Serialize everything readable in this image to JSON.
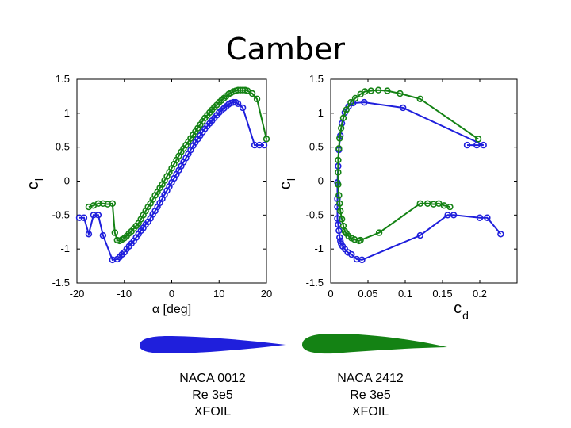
{
  "title": "Camber",
  "colors": {
    "naca0012": "#1f1fdc",
    "naca2412": "#148214"
  },
  "chart_data": [
    {
      "type": "line",
      "name": "cl-vs-alpha",
      "ylabel_main": "c",
      "ylabel_sub": "l",
      "xlabel": "α [deg]",
      "xlim": [
        -20,
        20
      ],
      "ylim": [
        -1.5,
        1.5
      ],
      "xticks": [
        -20,
        -10,
        0,
        10,
        20
      ],
      "xtick_labels": [
        "-20",
        "-10",
        "0",
        "10",
        "20"
      ],
      "yticks": [
        -1.5,
        -1,
        -0.5,
        0,
        0.5,
        1,
        1.5
      ],
      "ytick_labels": [
        "-1.5",
        "-1",
        "-0.5",
        "0",
        "0.5",
        "1",
        "1.5"
      ],
      "series": [
        {
          "name": "NACA 0012",
          "color": "#1f1fdc",
          "x": [
            -19.5,
            -18.5,
            -17.5,
            -16.5,
            -15.5,
            -14.5,
            -12.5,
            -11.5,
            -11,
            -10.5,
            -10,
            -9.5,
            -9,
            -8.5,
            -8,
            -7.5,
            -7,
            -6.5,
            -6,
            -5.5,
            -5,
            -4.5,
            -4,
            -3.5,
            -3,
            -2.5,
            -2,
            -1.5,
            -1,
            -0.5,
            0,
            0.5,
            1,
            1.5,
            2,
            2.5,
            3,
            3.5,
            4,
            4.5,
            5,
            5.5,
            6,
            6.5,
            7,
            7.5,
            8,
            8.5,
            9,
            9.5,
            10,
            10.5,
            11,
            11.5,
            12,
            12.5,
            13,
            13.5,
            14,
            15,
            17.5,
            18.5,
            19.5
          ],
          "y": [
            -0.54,
            -0.54,
            -0.78,
            -0.5,
            -0.5,
            -0.8,
            -1.16,
            -1.15,
            -1.12,
            -1.08,
            -1.05,
            -1.0,
            -0.96,
            -0.92,
            -0.88,
            -0.83,
            -0.78,
            -0.73,
            -0.69,
            -0.64,
            -0.6,
            -0.55,
            -0.49,
            -0.44,
            -0.38,
            -0.32,
            -0.26,
            -0.2,
            -0.14,
            -0.08,
            -0.02,
            0.04,
            0.1,
            0.16,
            0.22,
            0.28,
            0.34,
            0.4,
            0.46,
            0.52,
            0.57,
            0.62,
            0.67,
            0.72,
            0.77,
            0.81,
            0.85,
            0.89,
            0.93,
            0.97,
            1.01,
            1.04,
            1.07,
            1.1,
            1.13,
            1.15,
            1.16,
            1.16,
            1.14,
            1.08,
            0.53,
            0.53,
            0.53
          ]
        },
        {
          "name": "NACA 2412",
          "color": "#148214",
          "x": [
            -17.5,
            -16.5,
            -15.5,
            -14.5,
            -13.5,
            -12.5,
            -12,
            -11.5,
            -11,
            -10.5,
            -10,
            -9.5,
            -9,
            -8.5,
            -8,
            -7.5,
            -7,
            -6.5,
            -6,
            -5.5,
            -5,
            -4.5,
            -4,
            -3.5,
            -3,
            -2.5,
            -2,
            -1.5,
            -1,
            -0.5,
            0,
            0.5,
            1,
            1.5,
            2,
            2.5,
            3,
            3.5,
            4,
            4.5,
            5,
            5.5,
            6,
            6.5,
            7,
            7.5,
            8,
            8.5,
            9,
            9.5,
            10,
            10.5,
            11,
            11.5,
            12,
            12.5,
            13,
            13.5,
            14,
            14.5,
            15,
            15.5,
            16,
            17,
            18,
            20
          ],
          "y": [
            -0.38,
            -0.36,
            -0.33,
            -0.33,
            -0.34,
            -0.33,
            -0.76,
            -0.87,
            -0.88,
            -0.86,
            -0.84,
            -0.81,
            -0.77,
            -0.74,
            -0.7,
            -0.66,
            -0.62,
            -0.56,
            -0.5,
            -0.44,
            -0.38,
            -0.33,
            -0.27,
            -0.21,
            -0.16,
            -0.1,
            -0.05,
            0.01,
            0.07,
            0.13,
            0.19,
            0.25,
            0.31,
            0.37,
            0.43,
            0.48,
            0.53,
            0.58,
            0.63,
            0.68,
            0.73,
            0.78,
            0.83,
            0.88,
            0.93,
            0.97,
            1.01,
            1.05,
            1.09,
            1.12,
            1.16,
            1.19,
            1.22,
            1.25,
            1.28,
            1.3,
            1.32,
            1.33,
            1.34,
            1.34,
            1.34,
            1.34,
            1.33,
            1.29,
            1.21,
            0.62
          ]
        }
      ]
    },
    {
      "type": "line",
      "name": "cl-vs-cd",
      "ylabel_main": "c",
      "ylabel_sub": "l",
      "xlabel_main": "c",
      "xlabel_sub": "d",
      "xlim": [
        0,
        0.25
      ],
      "ylim": [
        -1.5,
        1.5
      ],
      "xticks": [
        0,
        0.05,
        0.1,
        0.15,
        0.2
      ],
      "xtick_labels": [
        "0",
        "0.05",
        "0.1",
        "0.15",
        "0.2"
      ],
      "yticks": [
        -1.5,
        -1,
        -0.5,
        0,
        0.5,
        1,
        1.5
      ],
      "ytick_labels": [
        "-1.5",
        "-1",
        "-0.5",
        "0",
        "0.5",
        "1",
        "1.5"
      ],
      "series": [
        {
          "name": "NACA 0012",
          "color": "#1f1fdc",
          "x": [
            0.196,
            0.183,
            0.205,
            0.097,
            0.045,
            0.03,
            0.024,
            0.019,
            0.015,
            0.013,
            0.011,
            0.01,
            0.009,
            0.009,
            0.009,
            0.009,
            0.01,
            0.011,
            0.012,
            0.013,
            0.014,
            0.016,
            0.019,
            0.023,
            0.028,
            0.035,
            0.042,
            0.12,
            0.157,
            0.165,
            0.2,
            0.21,
            0.228
          ],
          "y": [
            0.53,
            0.53,
            0.53,
            1.08,
            1.16,
            1.15,
            1.1,
            1.01,
            0.85,
            0.67,
            0.46,
            0.22,
            -0.02,
            -0.26,
            -0.38,
            -0.55,
            -0.64,
            -0.73,
            -0.83,
            -0.88,
            -0.92,
            -0.96,
            -1.0,
            -1.05,
            -1.08,
            -1.15,
            -1.16,
            -0.8,
            -0.5,
            -0.5,
            -0.54,
            -0.54,
            -0.78
          ]
        },
        {
          "name": "NACA 2412",
          "color": "#148214",
          "x": [
            0.198,
            0.12,
            0.093,
            0.076,
            0.064,
            0.054,
            0.046,
            0.04,
            0.033,
            0.027,
            0.021,
            0.017,
            0.014,
            0.012,
            0.011,
            0.01,
            0.01,
            0.01,
            0.011,
            0.012,
            0.013,
            0.015,
            0.017,
            0.019,
            0.021,
            0.024,
            0.028,
            0.032,
            0.038,
            0.04,
            0.065,
            0.12,
            0.13,
            0.138,
            0.145,
            0.152,
            0.16
          ],
          "y": [
            0.62,
            1.21,
            1.29,
            1.33,
            1.34,
            1.33,
            1.32,
            1.28,
            1.22,
            1.16,
            1.05,
            0.93,
            0.78,
            0.63,
            0.48,
            0.31,
            0.13,
            -0.05,
            -0.21,
            -0.33,
            -0.44,
            -0.56,
            -0.66,
            -0.74,
            -0.77,
            -0.81,
            -0.84,
            -0.86,
            -0.88,
            -0.87,
            -0.76,
            -0.33,
            -0.33,
            -0.34,
            -0.33,
            -0.36,
            -0.38
          ]
        }
      ]
    }
  ],
  "captions": {
    "left": {
      "line1": "NACA 0012",
      "line2": "Re 3e5",
      "line3": "XFOIL"
    },
    "right": {
      "line1": "NACA 2412",
      "line2": "Re 3e5",
      "line3": "XFOIL"
    }
  }
}
